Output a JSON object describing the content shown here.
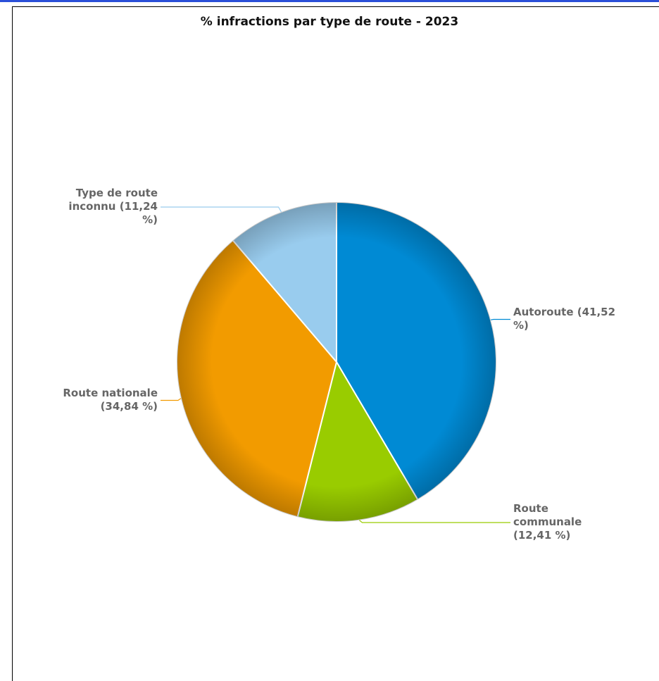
{
  "chart_data": {
    "type": "pie",
    "title": "% infractions par type de route - 2023",
    "slices": [
      {
        "label": "Autoroute (41,52 %)",
        "label_lines": [
          "Autoroute (41,52",
          "%)"
        ],
        "value": 41.52,
        "color": "#008ad4"
      },
      {
        "label": "Route communale (12,41 %)",
        "label_lines": [
          "Route",
          "communale",
          "(12,41 %)"
        ],
        "value": 12.41,
        "color": "#99cc00"
      },
      {
        "label": "Route nationale (34,84 %)",
        "label_lines": [
          "Route nationale",
          "(34,84 %)"
        ],
        "value": 34.84,
        "color": "#f29b00"
      },
      {
        "label": "Type de route inconnu (11,24 %)",
        "label_lines": [
          "Type de route",
          "inconnu (11,24",
          "%)"
        ],
        "value": 11.24,
        "color": "#99ccee"
      }
    ]
  }
}
